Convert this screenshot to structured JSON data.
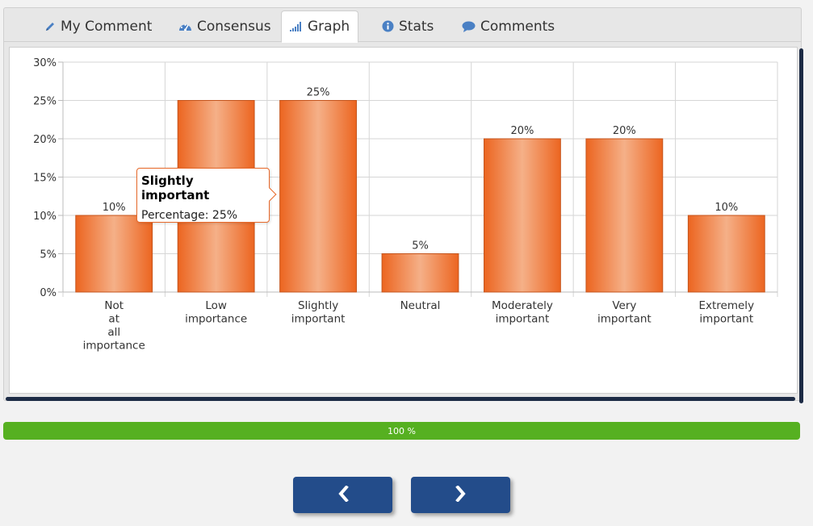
{
  "tabs": [
    {
      "label": "My Comment",
      "icon": "pencil-icon"
    },
    {
      "label": "Consensus",
      "icon": "dashboard-icon"
    },
    {
      "label": "Graph",
      "icon": "signal-bars-icon",
      "active": true
    },
    {
      "label": "Stats",
      "icon": "info-circle-icon"
    },
    {
      "label": "Comments",
      "icon": "comment-bubble-icon"
    }
  ],
  "chart_data": {
    "type": "bar",
    "categories": [
      [
        "Not",
        "at",
        "all",
        "importance"
      ],
      [
        "Low",
        "importance"
      ],
      [
        "Slightly",
        "important"
      ],
      [
        "Neutral"
      ],
      [
        "Moderately",
        "important"
      ],
      [
        "Very",
        "important"
      ],
      [
        "Extremely",
        "important"
      ]
    ],
    "values": [
      10,
      25,
      25,
      5,
      20,
      20,
      10
    ],
    "data_labels": [
      "10%",
      "",
      "25%",
      "5%",
      "20%",
      "20%",
      "10%"
    ],
    "ylim": [
      0,
      30
    ],
    "y_ticks": [
      "0%",
      "5%",
      "10%",
      "15%",
      "20%",
      "25%",
      "30%"
    ],
    "grid": true,
    "bar_color": "#ec6520"
  },
  "tooltip": {
    "title": "Slightly important",
    "line": "Percentage: 25%"
  },
  "progress": {
    "label": "100 %",
    "percent": 100,
    "color": "#56b021"
  },
  "nav": {
    "prev_icon": "chevron-left-icon",
    "next_icon": "chevron-right-icon"
  }
}
